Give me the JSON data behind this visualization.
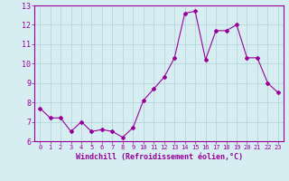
{
  "x": [
    0,
    1,
    2,
    3,
    4,
    5,
    6,
    7,
    8,
    9,
    10,
    11,
    12,
    13,
    14,
    15,
    16,
    17,
    18,
    19,
    20,
    21,
    22,
    23
  ],
  "y": [
    7.7,
    7.2,
    7.2,
    6.5,
    7.0,
    6.5,
    6.6,
    6.5,
    6.2,
    6.7,
    8.1,
    8.7,
    9.3,
    10.3,
    12.6,
    12.7,
    10.2,
    11.7,
    11.7,
    12.0,
    10.3,
    10.3,
    9.0,
    8.5
  ],
  "line_color": "#990099",
  "marker": "D",
  "marker_size": 2.0,
  "bg_color": "#d6eef2",
  "grid_color": "#b0d0d8",
  "xlabel": "Windchill (Refroidissement éolien,°C)",
  "xlabel_color": "#990099",
  "tick_color": "#990099",
  "spine_color": "#990099",
  "ylim": [
    6,
    13
  ],
  "xlim": [
    -0.5,
    23.5
  ],
  "yticks": [
    6,
    7,
    8,
    9,
    10,
    11,
    12,
    13
  ],
  "xticks": [
    0,
    1,
    2,
    3,
    4,
    5,
    6,
    7,
    8,
    9,
    10,
    11,
    12,
    13,
    14,
    15,
    16,
    17,
    18,
    19,
    20,
    21,
    22,
    23
  ],
  "figsize": [
    3.2,
    2.0
  ],
  "dpi": 100
}
